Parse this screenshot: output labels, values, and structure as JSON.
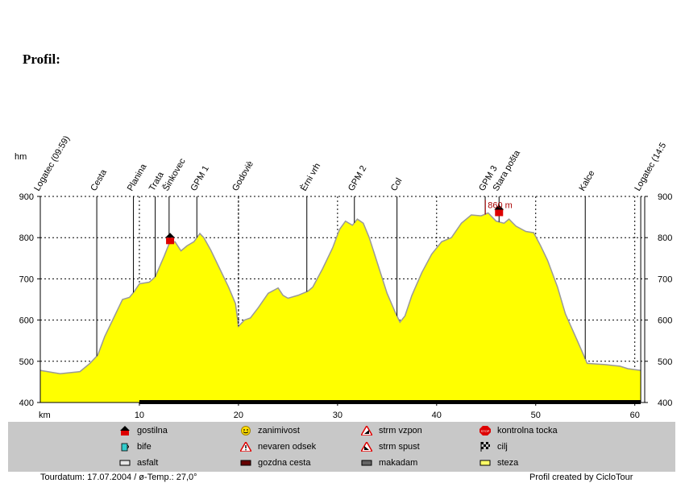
{
  "heading": "Profil:",
  "chart_data": {
    "type": "area",
    "ylabel": "hm",
    "xlabel": "km",
    "xlim": [
      0,
      61
    ],
    "ylim": [
      400,
      900
    ],
    "x_ticks": [
      10,
      20,
      30,
      40,
      50,
      60
    ],
    "y_ticks": [
      400,
      500,
      600,
      700,
      800,
      900
    ],
    "fill_color": "#ffff00",
    "outline_color": "#999999",
    "profile": [
      [
        0,
        478
      ],
      [
        2,
        470
      ],
      [
        4,
        475
      ],
      [
        5,
        495
      ],
      [
        5.8,
        515
      ],
      [
        6.5,
        560
      ],
      [
        7.5,
        610
      ],
      [
        8.3,
        650
      ],
      [
        9,
        655
      ],
      [
        9.5,
        670
      ],
      [
        10,
        688
      ],
      [
        11,
        692
      ],
      [
        11.6,
        705
      ],
      [
        12.5,
        755
      ],
      [
        13,
        785
      ],
      [
        13.6,
        790
      ],
      [
        14.2,
        768
      ],
      [
        14.8,
        780
      ],
      [
        15.5,
        790
      ],
      [
        16.1,
        810
      ],
      [
        16.5,
        800
      ],
      [
        17.2,
        770
      ],
      [
        18,
        730
      ],
      [
        19,
        680
      ],
      [
        19.7,
        640
      ],
      [
        20,
        585
      ],
      [
        20.6,
        600
      ],
      [
        21.2,
        605
      ],
      [
        22,
        630
      ],
      [
        23,
        665
      ],
      [
        24,
        678
      ],
      [
        24.5,
        660
      ],
      [
        25,
        653
      ],
      [
        26,
        660
      ],
      [
        27,
        670
      ],
      [
        27.5,
        680
      ],
      [
        28.5,
        725
      ],
      [
        29.5,
        775
      ],
      [
        30.2,
        820
      ],
      [
        30.8,
        840
      ],
      [
        31.5,
        830
      ],
      [
        32,
        845
      ],
      [
        32.6,
        835
      ],
      [
        33.2,
        800
      ],
      [
        34,
        740
      ],
      [
        35,
        665
      ],
      [
        35.8,
        620
      ],
      [
        36.3,
        595
      ],
      [
        36.8,
        610
      ],
      [
        37.5,
        660
      ],
      [
        38.5,
        715
      ],
      [
        39.5,
        760
      ],
      [
        40.5,
        790
      ],
      [
        41.5,
        800
      ],
      [
        42.5,
        835
      ],
      [
        43.5,
        855
      ],
      [
        44.5,
        853
      ],
      [
        45.2,
        860
      ],
      [
        46,
        840
      ],
      [
        46.8,
        835
      ],
      [
        47.3,
        845
      ],
      [
        48,
        828
      ],
      [
        49,
        815
      ],
      [
        49.8,
        812
      ],
      [
        50.5,
        780
      ],
      [
        51.2,
        745
      ],
      [
        52.2,
        680
      ],
      [
        53,
        615
      ],
      [
        54.2,
        550
      ],
      [
        55.2,
        495
      ],
      [
        57,
        492
      ],
      [
        58.5,
        488
      ],
      [
        59.3,
        482
      ],
      [
        60.6,
        478
      ]
    ],
    "waypoints": [
      {
        "km": 0,
        "label": "Logatec (09:59)",
        "style": "solid",
        "tall": true
      },
      {
        "km": 5.7,
        "label": "Cesta",
        "style": "solid"
      },
      {
        "km": 9.4,
        "label": "Planina",
        "style": "solid"
      },
      {
        "km": 11.6,
        "label": "Trata",
        "style": "solid"
      },
      {
        "km": 13.0,
        "label": "Šinkovec",
        "style": "solid"
      },
      {
        "km": 15.8,
        "label": "GPM 1",
        "style": "solid"
      },
      {
        "km": 20.0,
        "label": "Godoviè",
        "style": "dashed"
      },
      {
        "km": 26.9,
        "label": "Èrni vrh",
        "style": "solid"
      },
      {
        "km": 31.7,
        "label": "GPM 2",
        "style": "solid"
      },
      {
        "km": 36.0,
        "label": "Col",
        "style": "solid"
      },
      {
        "km": 44.9,
        "label": "GPM 3",
        "style": "solid"
      },
      {
        "km": 46.3,
        "label": "Stara pošta",
        "style": "solid"
      },
      {
        "km": 55.0,
        "label": "Kalce",
        "style": "solid"
      },
      {
        "km": 60.6,
        "label": "Logatec (14:5",
        "style": "solid",
        "tall": true
      }
    ],
    "peak_annotation": {
      "km": 46.3,
      "elevation": 860,
      "label": "860 m"
    },
    "house_markers": [
      {
        "km": 13.1,
        "elevation": 792
      },
      {
        "km": 46.3,
        "elevation": 860
      }
    ],
    "surface_segments": [
      {
        "from": 0,
        "to": 10,
        "type": "asfalt"
      },
      {
        "from": 10,
        "to": 60.6,
        "type": "makadam"
      }
    ]
  },
  "legend": {
    "items": [
      {
        "label": "gostilna",
        "icon": "house-icon"
      },
      {
        "label": "zanimivost",
        "icon": "smiley-icon"
      },
      {
        "label": "strm vzpon",
        "icon": "steep-climb-icon"
      },
      {
        "label": "kontrolna tocka",
        "icon": "stop-sign-icon"
      },
      {
        "label": "bife",
        "icon": "cup-icon"
      },
      {
        "label": "nevaren odsek",
        "icon": "warning-icon"
      },
      {
        "label": "strm spust",
        "icon": "steep-descent-icon"
      },
      {
        "label": "cilj",
        "icon": "finish-flag-icon"
      },
      {
        "label": "asfalt",
        "icon": "asphalt-swatch"
      },
      {
        "label": "gozdna cesta",
        "icon": "forest-road-swatch"
      },
      {
        "label": "makadam",
        "icon": "gravel-swatch"
      },
      {
        "label": "steza",
        "icon": "trail-swatch"
      }
    ]
  },
  "footer": {
    "left": "Tourdatum: 17.07.2004  /  ø-Temp.: 27,0°",
    "right": "Profil created by CicloTour"
  },
  "colors": {
    "house_red": "#dd0000",
    "peak_label": "#aa0000",
    "legend_bg": "#c8c8c8",
    "road_black": "#000000"
  }
}
